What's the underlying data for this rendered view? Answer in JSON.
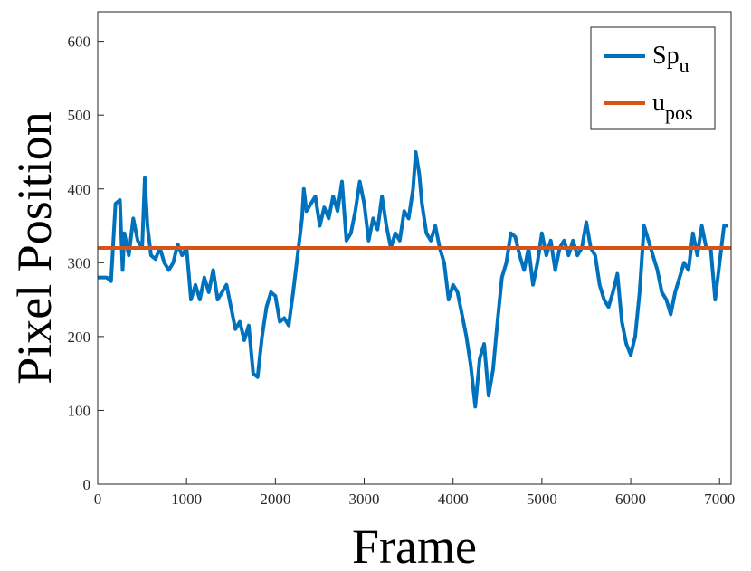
{
  "chart_data": {
    "type": "line",
    "xlabel": "Frame",
    "ylabel": "Pixel Position",
    "xlim": [
      0,
      7130
    ],
    "ylim": [
      0,
      640
    ],
    "xticks": [
      0,
      1000,
      2000,
      3000,
      4000,
      5000,
      6000,
      7000
    ],
    "yticks": [
      0,
      100,
      200,
      300,
      400,
      500,
      600
    ],
    "legend": "top-right",
    "series": [
      {
        "name": "Sp_u",
        "color": "#0072bd",
        "x": [
          0,
          100,
          150,
          200,
          250,
          280,
          300,
          350,
          400,
          450,
          500,
          530,
          560,
          600,
          650,
          700,
          750,
          800,
          850,
          900,
          950,
          1000,
          1050,
          1100,
          1150,
          1200,
          1250,
          1300,
          1350,
          1400,
          1450,
          1500,
          1550,
          1600,
          1650,
          1700,
          1750,
          1800,
          1850,
          1900,
          1950,
          2000,
          2050,
          2100,
          2150,
          2200,
          2250,
          2300,
          2320,
          2350,
          2400,
          2450,
          2500,
          2550,
          2600,
          2650,
          2700,
          2750,
          2800,
          2850,
          2900,
          2950,
          3000,
          3050,
          3100,
          3150,
          3200,
          3250,
          3300,
          3350,
          3400,
          3450,
          3500,
          3550,
          3580,
          3620,
          3650,
          3700,
          3750,
          3800,
          3850,
          3900,
          3950,
          4000,
          4050,
          4100,
          4150,
          4200,
          4250,
          4300,
          4350,
          4400,
          4450,
          4500,
          4550,
          4600,
          4650,
          4700,
          4750,
          4800,
          4850,
          4900,
          4950,
          5000,
          5050,
          5100,
          5150,
          5200,
          5250,
          5300,
          5350,
          5400,
          5450,
          5500,
          5550,
          5600,
          5650,
          5700,
          5750,
          5800,
          5850,
          5900,
          5950,
          6000,
          6050,
          6100,
          6150,
          6200,
          6250,
          6300,
          6350,
          6400,
          6450,
          6500,
          6550,
          6600,
          6650,
          6700,
          6750,
          6800,
          6850,
          6900,
          6950,
          7000,
          7050,
          7100
        ],
        "values": [
          280,
          280,
          275,
          380,
          385,
          290,
          340,
          310,
          360,
          330,
          320,
          415,
          350,
          310,
          305,
          320,
          300,
          290,
          300,
          325,
          310,
          320,
          250,
          270,
          250,
          280,
          260,
          290,
          250,
          260,
          270,
          240,
          210,
          220,
          195,
          215,
          150,
          145,
          200,
          240,
          260,
          255,
          220,
          225,
          215,
          260,
          310,
          360,
          400,
          370,
          380,
          390,
          350,
          375,
          360,
          390,
          370,
          410,
          330,
          340,
          370,
          410,
          380,
          330,
          360,
          345,
          390,
          350,
          320,
          340,
          330,
          370,
          360,
          400,
          450,
          420,
          380,
          340,
          330,
          350,
          320,
          300,
          250,
          270,
          260,
          230,
          200,
          160,
          105,
          170,
          190,
          120,
          155,
          220,
          280,
          300,
          340,
          335,
          310,
          290,
          320,
          270,
          300,
          340,
          310,
          330,
          290,
          320,
          330,
          310,
          330,
          310,
          320,
          355,
          320,
          310,
          270,
          250,
          240,
          260,
          285,
          220,
          190,
          175,
          200,
          260,
          350,
          330,
          310,
          290,
          260,
          250,
          230,
          260,
          280,
          300,
          290,
          340,
          310,
          350,
          320,
          320,
          250,
          300,
          350,
          350
        ]
      },
      {
        "name": "u_pos",
        "color": "#d95319",
        "x": [
          0,
          7130
        ],
        "values": [
          320,
          320
        ]
      }
    ]
  }
}
